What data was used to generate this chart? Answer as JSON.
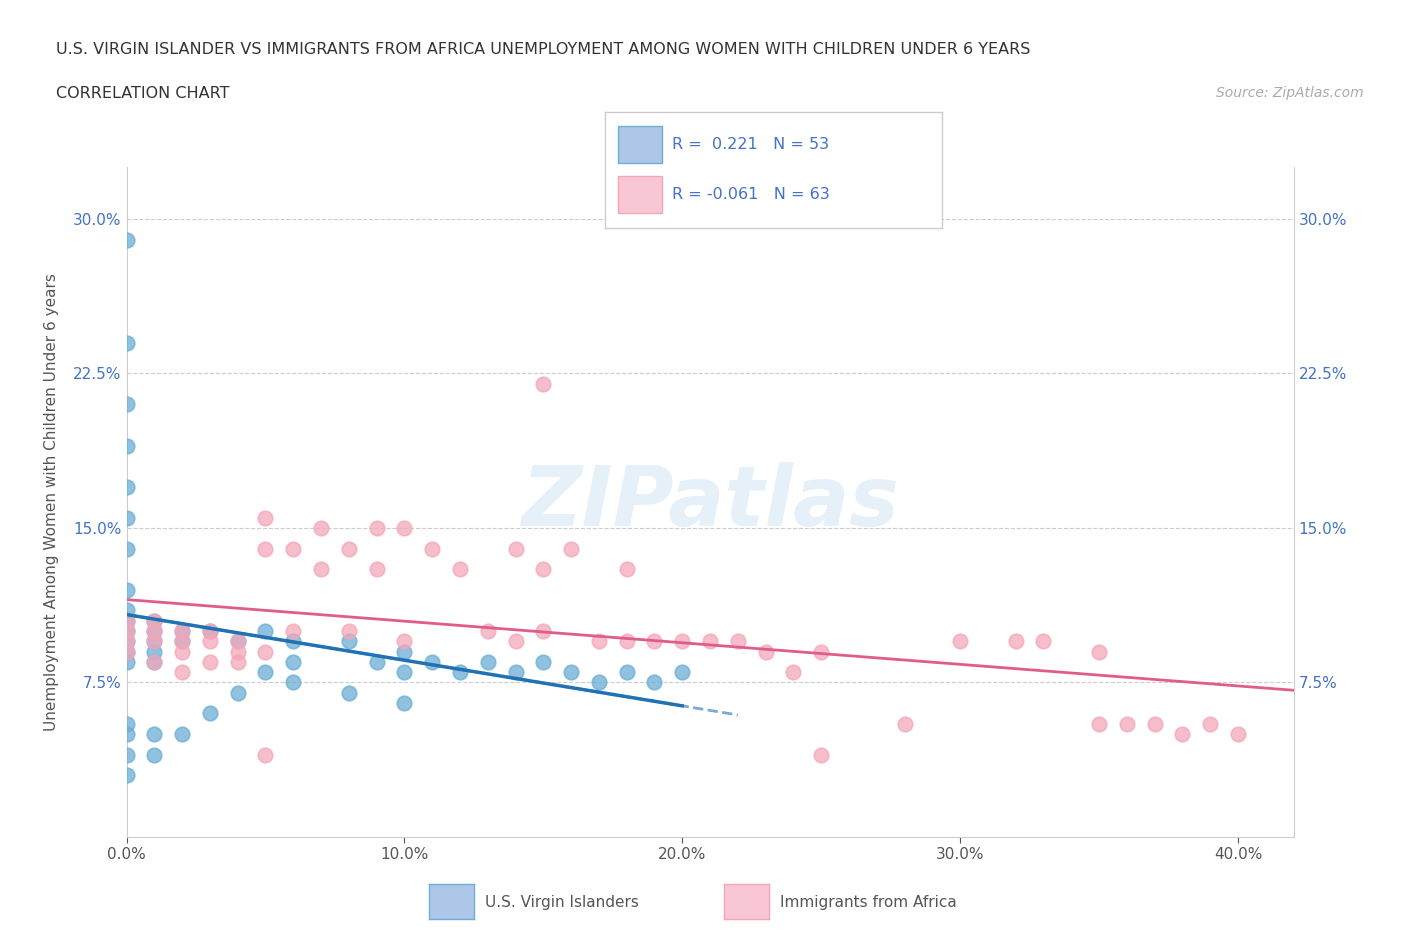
{
  "title_line1": "U.S. VIRGIN ISLANDER VS IMMIGRANTS FROM AFRICA UNEMPLOYMENT AMONG WOMEN WITH CHILDREN UNDER 6 YEARS",
  "title_line2": "CORRELATION CHART",
  "source_text": "Source: ZipAtlas.com",
  "ylabel": "Unemployment Among Women with Children Under 6 years",
  "xlim": [
    0.0,
    0.42
  ],
  "ylim": [
    0.0,
    0.325
  ],
  "xtick_labels": [
    "0.0%",
    "10.0%",
    "20.0%",
    "30.0%",
    "40.0%"
  ],
  "xtick_values": [
    0.0,
    0.1,
    0.2,
    0.3,
    0.4
  ],
  "ytick_labels": [
    "7.5%",
    "15.0%",
    "22.5%",
    "30.0%"
  ],
  "ytick_values": [
    0.075,
    0.15,
    0.225,
    0.3
  ],
  "blue_color": "#6baed6",
  "pink_color": "#f4a7b9",
  "blue_line_color": "#2171b5",
  "pink_line_color": "#e05c8a",
  "watermark": "ZIPatlas",
  "blue_scatter_x": [
    0.0,
    0.0,
    0.0,
    0.0,
    0.0,
    0.0,
    0.0,
    0.0,
    0.0,
    0.0,
    0.0,
    0.0,
    0.0,
    0.0,
    0.01,
    0.01,
    0.01,
    0.01,
    0.01,
    0.02,
    0.02,
    0.03,
    0.04,
    0.05,
    0.06,
    0.06,
    0.08,
    0.09,
    0.1,
    0.1,
    0.11,
    0.12,
    0.13,
    0.14,
    0.15,
    0.16,
    0.17,
    0.18,
    0.19,
    0.2,
    0.0,
    0.0,
    0.0,
    0.0,
    0.01,
    0.01,
    0.02,
    0.03,
    0.04,
    0.05,
    0.06,
    0.08,
    0.1
  ],
  "blue_scatter_y": [
    0.29,
    0.24,
    0.21,
    0.19,
    0.17,
    0.155,
    0.14,
    0.12,
    0.11,
    0.105,
    0.1,
    0.095,
    0.09,
    0.085,
    0.105,
    0.1,
    0.095,
    0.09,
    0.085,
    0.1,
    0.095,
    0.1,
    0.095,
    0.1,
    0.095,
    0.085,
    0.095,
    0.085,
    0.09,
    0.08,
    0.085,
    0.08,
    0.085,
    0.08,
    0.085,
    0.08,
    0.075,
    0.08,
    0.075,
    0.08,
    0.055,
    0.05,
    0.04,
    0.03,
    0.05,
    0.04,
    0.05,
    0.06,
    0.07,
    0.08,
    0.075,
    0.07,
    0.065
  ],
  "pink_scatter_x": [
    0.0,
    0.0,
    0.0,
    0.0,
    0.01,
    0.01,
    0.01,
    0.01,
    0.02,
    0.02,
    0.02,
    0.02,
    0.03,
    0.03,
    0.03,
    0.04,
    0.04,
    0.04,
    0.05,
    0.05,
    0.05,
    0.06,
    0.06,
    0.07,
    0.07,
    0.08,
    0.08,
    0.09,
    0.09,
    0.1,
    0.1,
    0.11,
    0.12,
    0.13,
    0.14,
    0.14,
    0.15,
    0.15,
    0.16,
    0.17,
    0.18,
    0.18,
    0.19,
    0.2,
    0.21,
    0.22,
    0.23,
    0.24,
    0.25,
    0.28,
    0.3,
    0.32,
    0.33,
    0.35,
    0.36,
    0.37,
    0.38,
    0.39,
    0.4,
    0.05,
    0.15,
    0.25,
    0.35
  ],
  "pink_scatter_y": [
    0.105,
    0.1,
    0.095,
    0.09,
    0.105,
    0.1,
    0.095,
    0.085,
    0.1,
    0.095,
    0.09,
    0.08,
    0.1,
    0.095,
    0.085,
    0.095,
    0.09,
    0.085,
    0.155,
    0.14,
    0.09,
    0.14,
    0.1,
    0.15,
    0.13,
    0.14,
    0.1,
    0.15,
    0.13,
    0.15,
    0.095,
    0.14,
    0.13,
    0.1,
    0.14,
    0.095,
    0.13,
    0.1,
    0.14,
    0.095,
    0.13,
    0.095,
    0.095,
    0.095,
    0.095,
    0.095,
    0.09,
    0.08,
    0.09,
    0.055,
    0.095,
    0.095,
    0.095,
    0.09,
    0.055,
    0.055,
    0.05,
    0.055,
    0.05,
    0.04,
    0.22,
    0.04,
    0.055
  ]
}
